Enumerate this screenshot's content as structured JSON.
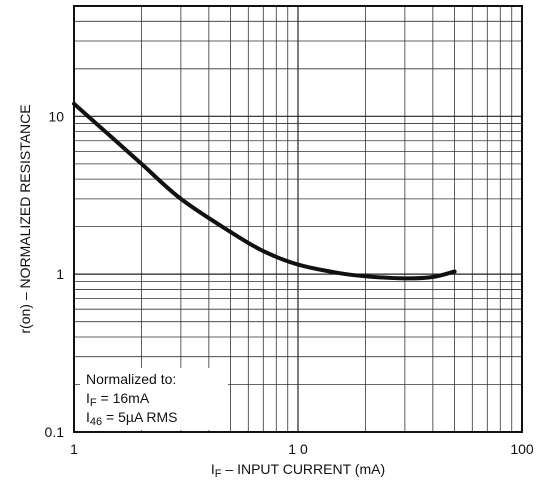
{
  "chart_data": {
    "type": "line",
    "xscale": "log",
    "yscale": "log",
    "xlim": [
      1,
      100
    ],
    "ylim": [
      0.1,
      50
    ],
    "grid": true,
    "xlabel": {
      "main": "I",
      "sub": "F",
      "rest": " – INPUT CURRENT (mA)"
    },
    "ylabel": "r(on) – NORMALIZED RESISTANCE",
    "x_ticks": [
      {
        "value": 1,
        "label": "1"
      },
      {
        "value": 10,
        "label": "1    0"
      },
      {
        "value": 100,
        "label": "100"
      }
    ],
    "y_ticks": [
      {
        "value": 0.1,
        "label": "0.1"
      },
      {
        "value": 1,
        "label": "1"
      },
      {
        "value": 10,
        "label": "10"
      }
    ],
    "series": [
      {
        "x": [
          1,
          1.5,
          2,
          3,
          5,
          7,
          10,
          15,
          20,
          30,
          40,
          50
        ],
        "y": [
          12,
          7.2,
          5.0,
          3.0,
          1.85,
          1.4,
          1.15,
          1.02,
          0.97,
          0.94,
          0.96,
          1.04
        ]
      }
    ],
    "annotation": {
      "line1": "Normalized to:",
      "line2": {
        "main": "I",
        "sub": "F",
        "rest": " = 16mA"
      },
      "line3": {
        "main": "I",
        "sub": "46",
        "rest": " = 5µA RMS"
      }
    }
  }
}
